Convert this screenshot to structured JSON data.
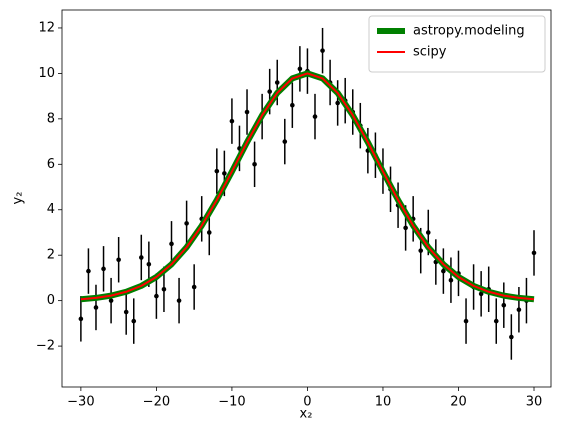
{
  "chart_data": {
    "type": "line",
    "x_label": "x₂",
    "y_label": "y₂",
    "xlim": [
      -32.5,
      32.25
    ],
    "ylim": [
      -3.8,
      12.79
    ],
    "xticks": [
      {
        "value": -30,
        "label": "−30"
      },
      {
        "value": -20,
        "label": "−20"
      },
      {
        "value": -10,
        "label": "−10"
      },
      0,
      10,
      20,
      30
    ],
    "yticks": [
      {
        "value": -2,
        "label": "−2"
      },
      0,
      2,
      4,
      6,
      8,
      10,
      12
    ],
    "legend": "upper right",
    "points": {
      "color": "#000000",
      "yerr": 1,
      "x": [
        -30,
        -29,
        -28,
        -27,
        -26,
        -25,
        -24,
        -23,
        -22,
        -21,
        -20,
        -19,
        -18,
        -17,
        -16,
        -15,
        -14,
        -13,
        -12,
        -11,
        -10,
        -9,
        -8,
        -7,
        -6,
        -5,
        -4,
        -3,
        -2,
        -1,
        0,
        1,
        2,
        3,
        4,
        5,
        6,
        7,
        8,
        9,
        10,
        11,
        12,
        13,
        14,
        15,
        16,
        17,
        18,
        19,
        20,
        21,
        22,
        23,
        24,
        25,
        26,
        27,
        28,
        29,
        30
      ],
      "values": [
        -0.8,
        1.3,
        -0.3,
        1.4,
        0.0,
        1.8,
        -0.5,
        -0.9,
        1.9,
        1.6,
        0.2,
        0.5,
        2.5,
        0.0,
        3.4,
        0.6,
        3.6,
        3.0,
        5.7,
        5.6,
        7.9,
        6.7,
        8.3,
        6.0,
        8.1,
        9.2,
        9.6,
        7.0,
        8.6,
        10.2,
        10.1,
        8.1,
        11.0,
        9.6,
        8.7,
        8.8,
        8.3,
        7.7,
        6.6,
        6.4,
        5.7,
        4.9,
        4.2,
        3.2,
        3.6,
        2.2,
        3.0,
        1.7,
        1.3,
        0.9,
        1.2,
        -0.9,
        0.6,
        0.3,
        0.5,
        -0.9,
        -0.2,
        -1.6,
        -0.4,
        0.0,
        2.1
      ]
    },
    "x": [
      -30,
      -28,
      -26,
      -24,
      -22,
      -20,
      -18,
      -16,
      -14,
      -12,
      -10,
      -8,
      -6,
      -4,
      -2,
      0,
      2,
      4,
      6,
      8,
      10,
      12,
      14,
      16,
      18,
      20,
      22,
      24,
      26,
      28,
      30
    ],
    "series": [
      {
        "name": "astropy.modeling",
        "color": "#008000",
        "width": 6,
        "values": [
          0.06,
          0.12,
          0.22,
          0.39,
          0.65,
          1.04,
          1.6,
          2.35,
          3.3,
          4.43,
          5.68,
          6.97,
          8.16,
          9.14,
          9.78,
          10,
          9.78,
          9.14,
          8.16,
          6.97,
          5.68,
          4.43,
          3.3,
          2.35,
          1.6,
          1.04,
          0.65,
          0.39,
          0.22,
          0.12,
          0.06
        ]
      },
      {
        "name": "scipy",
        "color": "#ff0000",
        "width": 2,
        "values": [
          0.06,
          0.12,
          0.22,
          0.39,
          0.65,
          1.04,
          1.6,
          2.35,
          3.3,
          4.43,
          5.68,
          6.97,
          8.16,
          9.14,
          9.78,
          10,
          9.78,
          9.14,
          8.16,
          6.97,
          5.68,
          4.43,
          3.3,
          2.35,
          1.6,
          1.04,
          0.65,
          0.39,
          0.22,
          0.12,
          0.06
        ]
      }
    ]
  }
}
